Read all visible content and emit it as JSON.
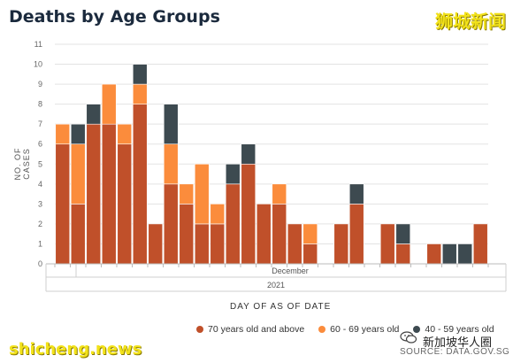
{
  "chart_data": {
    "type": "bar",
    "stacked": true,
    "title": "Deaths by Age Groups",
    "ylabel": "NO. OF CASES",
    "xlabel": "DAY OF AS OF DATE",
    "x_group_labels": [
      "December",
      "2021"
    ],
    "ylim": [
      0,
      11
    ],
    "yticks": [
      "0",
      "1",
      "2",
      "3",
      "4",
      "5",
      "6",
      "7",
      "8",
      "9",
      "10",
      "11"
    ],
    "grid": true,
    "legend_position": "bottom-right",
    "series": [
      {
        "name": "70 years old and above",
        "color": "#c0502a",
        "values": [
          6,
          3,
          7,
          7,
          6,
          8,
          2,
          4,
          3,
          2,
          2,
          4,
          5,
          3,
          3,
          2,
          1,
          0,
          2,
          3,
          0,
          2,
          1,
          0,
          1,
          0,
          0,
          2
        ]
      },
      {
        "name": "60 - 69 years old",
        "color": "#fb8c3c",
        "values": [
          1,
          3,
          0,
          2,
          1,
          1,
          0,
          2,
          1,
          3,
          1,
          0,
          0,
          0,
          1,
          0,
          1,
          0,
          0,
          0,
          0,
          0,
          0,
          0,
          0,
          0,
          0,
          0
        ]
      },
      {
        "name": "40 - 59 years old",
        "color": "#3d4a50",
        "values": [
          0,
          1,
          1,
          0,
          0,
          1,
          0,
          2,
          0,
          0,
          0,
          1,
          1,
          0,
          0,
          0,
          0,
          0,
          0,
          1,
          0,
          0,
          1,
          0,
          0,
          1,
          1,
          0
        ]
      }
    ]
  },
  "watermarks": {
    "top_right": "狮城新闻",
    "bottom_left": "shicheng.news",
    "bottom_right": "新加坡华人圈",
    "source": "SOURCE: DATA.GOV.SG"
  },
  "icons": {
    "wechat": "wechat-icon"
  }
}
